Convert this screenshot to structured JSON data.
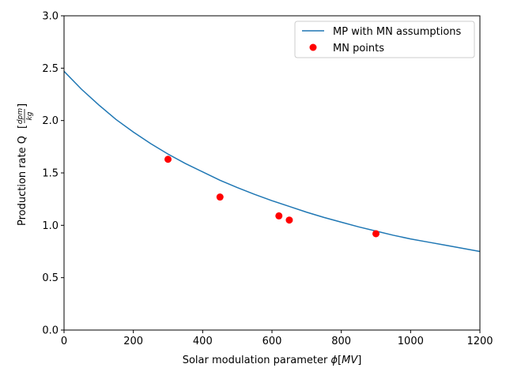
{
  "chart_data": {
    "type": "line",
    "xlabel": "Solar modulation parameter",
    "xlabel_math": {
      "symbol": "ϕ",
      "unit": "MV"
    },
    "ylabel": "Production rate Q",
    "ylabel_unit": {
      "numerator": "dpm",
      "denominator": "kg"
    },
    "xlim": [
      0,
      1200
    ],
    "ylim": [
      0,
      3.0
    ],
    "x_ticks": [
      0,
      200,
      400,
      600,
      800,
      1000,
      1200
    ],
    "x_tick_labels": [
      "0",
      "200",
      "400",
      "600",
      "800",
      "1000",
      "1200"
    ],
    "y_ticks": [
      0,
      0.5,
      1.0,
      1.5,
      2.0,
      2.5,
      3.0
    ],
    "y_tick_labels": [
      "0.0",
      "0.5",
      "1.0",
      "1.5",
      "2.0",
      "2.5",
      "3.0"
    ],
    "grid": false,
    "legend": {
      "placement": "top-right"
    },
    "series": [
      {
        "name": "MP with MN assumptions",
        "kind": "line",
        "color": "#1f77b4",
        "x": [
          0,
          50,
          100,
          150,
          200,
          250,
          300,
          350,
          400,
          450,
          500,
          550,
          600,
          650,
          700,
          750,
          800,
          850,
          900,
          950,
          1000,
          1050,
          1100,
          1150,
          1200
        ],
        "y": [
          2.47,
          2.3,
          2.15,
          2.01,
          1.89,
          1.78,
          1.68,
          1.59,
          1.51,
          1.43,
          1.36,
          1.295,
          1.235,
          1.18,
          1.125,
          1.075,
          1.03,
          0.985,
          0.945,
          0.905,
          0.87,
          0.84,
          0.81,
          0.78,
          0.75
        ]
      },
      {
        "name": "MN points",
        "kind": "scatter",
        "color": "#ff0000",
        "x": [
          300,
          450,
          620,
          650,
          900
        ],
        "y": [
          1.63,
          1.27,
          1.09,
          1.05,
          0.92
        ]
      }
    ]
  }
}
